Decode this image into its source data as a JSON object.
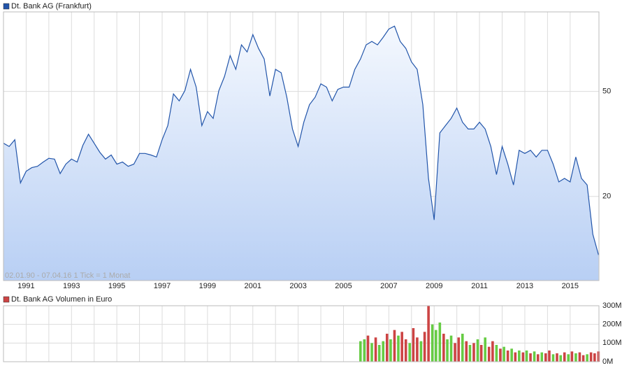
{
  "chart_data": [
    {
      "type": "line",
      "legend": "Dt. Bank AG (Frankfurt)",
      "annotation": "02.01.90 - 07.04.16   1 Tick = 1 Monat",
      "log_y": true,
      "grid": true,
      "color": "#2255aa",
      "xlim": [
        1990.0,
        2016.27
      ],
      "ylim": [
        9.6,
        100
      ],
      "xticks": [
        1991,
        1993,
        1995,
        1997,
        1999,
        2001,
        2003,
        2005,
        2007,
        2009,
        2011,
        2013,
        2015
      ],
      "yticks": [
        20,
        50
      ],
      "x": [
        1990.0,
        1990.25,
        1990.5,
        1990.75,
        1991.0,
        1991.25,
        1991.5,
        1991.75,
        1992.0,
        1992.25,
        1992.5,
        1992.75,
        1993.0,
        1993.25,
        1993.5,
        1993.75,
        1994.0,
        1994.25,
        1994.5,
        1994.75,
        1995.0,
        1995.25,
        1995.5,
        1995.75,
        1996.0,
        1996.25,
        1996.5,
        1996.75,
        1997.0,
        1997.25,
        1997.5,
        1997.75,
        1998.0,
        1998.25,
        1998.5,
        1998.75,
        1999.0,
        1999.25,
        1999.5,
        1999.75,
        2000.0,
        2000.25,
        2000.5,
        2000.75,
        2001.0,
        2001.25,
        2001.5,
        2001.75,
        2002.0,
        2002.25,
        2002.5,
        2002.75,
        2003.0,
        2003.25,
        2003.5,
        2003.75,
        2004.0,
        2004.25,
        2004.5,
        2004.75,
        2005.0,
        2005.25,
        2005.5,
        2005.75,
        2006.0,
        2006.25,
        2006.5,
        2006.75,
        2007.0,
        2007.25,
        2007.5,
        2007.75,
        2008.0,
        2008.25,
        2008.5,
        2008.75,
        2009.0,
        2009.25,
        2009.5,
        2009.75,
        2010.0,
        2010.25,
        2010.5,
        2010.75,
        2011.0,
        2011.25,
        2011.5,
        2011.75,
        2012.0,
        2012.25,
        2012.5,
        2012.75,
        2013.0,
        2013.25,
        2013.5,
        2013.75,
        2014.0,
        2014.25,
        2014.5,
        2014.75,
        2015.0,
        2015.25,
        2015.5,
        2015.75,
        2016.0,
        2016.25
      ],
      "values": [
        31.8,
        30.9,
        32.8,
        22.5,
        24.9,
        25.7,
        26.0,
        27.0,
        27.9,
        27.7,
        24.4,
        26.5,
        27.7,
        27.0,
        31.2,
        34.4,
        31.8,
        29.4,
        27.7,
        28.7,
        26.5,
        27.0,
        26.0,
        26.5,
        29.1,
        29.1,
        28.7,
        28.2,
        32.8,
        37.1,
        48.9,
        46.0,
        50.3,
        60.6,
        51.9,
        37.1,
        41.9,
        39.5,
        50.3,
        56.9,
        68.3,
        60.6,
        75.0,
        70.5,
        82.0,
        72.7,
        66.3,
        48.0,
        60.6,
        58.8,
        47.5,
        36.0,
        30.9,
        38.2,
        44.5,
        47.5,
        53.4,
        51.9,
        46.0,
        50.9,
        51.9,
        51.9,
        60.6,
        66.3,
        75.0,
        77.3,
        75.0,
        80.1,
        86.1,
        88.3,
        77.3,
        72.7,
        64.6,
        60.6,
        44.5,
        23.4,
        16.3,
        34.8,
        37.1,
        39.5,
        43.2,
        38.2,
        36.0,
        36.0,
        38.2,
        36.0,
        30.9,
        24.2,
        30.9,
        26.5,
        22.1,
        29.9,
        29.1,
        29.9,
        28.2,
        29.9,
        29.9,
        26.5,
        22.7,
        23.4,
        22.7,
        28.2,
        23.4,
        22.1,
        14.4,
        12.0
      ]
    },
    {
      "type": "bar",
      "legend": "Dt. Bank AG Volumen in Euro",
      "grid": true,
      "xlim": [
        1990.0,
        2016.27
      ],
      "ylim": [
        0,
        300
      ],
      "yticks": [
        {
          "value": 0,
          "label": "0M"
        },
        {
          "value": 100,
          "label": "100M"
        },
        {
          "value": 200,
          "label": "200M"
        },
        {
          "value": 300,
          "label": "300M"
        }
      ],
      "x": [
        2005.75,
        2005.92,
        2006.08,
        2006.25,
        2006.42,
        2006.58,
        2006.75,
        2006.92,
        2007.08,
        2007.25,
        2007.42,
        2007.58,
        2007.75,
        2007.92,
        2008.08,
        2008.25,
        2008.42,
        2008.58,
        2008.75,
        2008.92,
        2009.08,
        2009.25,
        2009.42,
        2009.58,
        2009.75,
        2009.92,
        2010.08,
        2010.25,
        2010.42,
        2010.58,
        2010.75,
        2010.92,
        2011.08,
        2011.25,
        2011.42,
        2011.58,
        2011.75,
        2011.92,
        2012.08,
        2012.25,
        2012.42,
        2012.58,
        2012.75,
        2012.92,
        2013.08,
        2013.25,
        2013.42,
        2013.58,
        2013.75,
        2013.92,
        2014.08,
        2014.25,
        2014.42,
        2014.58,
        2014.75,
        2014.92,
        2015.08,
        2015.25,
        2015.42,
        2015.58,
        2015.75,
        2015.92,
        2016.08,
        2016.25
      ],
      "values": [
        110,
        120,
        140,
        100,
        130,
        90,
        110,
        150,
        120,
        170,
        140,
        160,
        120,
        100,
        180,
        130,
        110,
        160,
        300,
        200,
        170,
        210,
        150,
        120,
        140,
        100,
        130,
        150,
        110,
        90,
        100,
        120,
        90,
        130,
        80,
        110,
        90,
        70,
        80,
        60,
        70,
        50,
        60,
        50,
        60,
        45,
        55,
        40,
        50,
        45,
        60,
        40,
        45,
        35,
        50,
        40,
        55,
        45,
        50,
        35,
        40,
        50,
        45,
        55
      ],
      "colors": [
        "#6c4",
        "#6c4",
        "#c44",
        "#6c4",
        "#c44",
        "#6c4",
        "#6c4",
        "#c44",
        "#6c4",
        "#c44",
        "#6c4",
        "#c44",
        "#c44",
        "#6c4",
        "#c44",
        "#c44",
        "#6c4",
        "#c44",
        "#c44",
        "#6c4",
        "#6c4",
        "#6c4",
        "#c44",
        "#6c4",
        "#6c4",
        "#c44",
        "#c44",
        "#6c4",
        "#c44",
        "#6c4",
        "#c44",
        "#6c4",
        "#c44",
        "#6c4",
        "#c44",
        "#c44",
        "#6c4",
        "#c44",
        "#6c4",
        "#c44",
        "#6c4",
        "#c44",
        "#6c4",
        "#c44",
        "#6c4",
        "#c44",
        "#6c4",
        "#c44",
        "#6c4",
        "#c44",
        "#c44",
        "#6c4",
        "#c44",
        "#6c4",
        "#c44",
        "#6c4",
        "#c44",
        "#6c4",
        "#c44",
        "#c44",
        "#6c4",
        "#c44",
        "#c44",
        "#c44"
      ]
    }
  ]
}
